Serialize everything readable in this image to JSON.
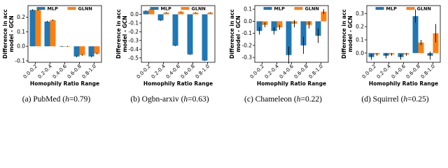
{
  "chart_data": [
    {
      "type": "bar",
      "caption": [
        "(a) PubMed (",
        "h",
        "=0.79)"
      ],
      "ylabel": [
        "Difference in acc",
        "model - GCN"
      ],
      "xlabel": "Homophily Ratio Range",
      "categories": [
        "0.0-0.2",
        "0.2-0.4",
        "0.4-0.6",
        "0.6-0.8",
        "0.8-1.0"
      ],
      "series": [
        {
          "name": "MLP",
          "color": "#1f77b4",
          "values": [
            0.25,
            0.17,
            0.0,
            -0.07,
            -0.07
          ],
          "errors": [
            0.005,
            0.005,
            0.003,
            0.005,
            0.005
          ]
        },
        {
          "name": "GLNN",
          "color": "#ff7f0e",
          "values": [
            0.25,
            0.18,
            0.0,
            -0.06,
            -0.05
          ],
          "errors": [
            0.005,
            0.005,
            0.003,
            0.005,
            0.005
          ]
        }
      ],
      "ylim": [
        -0.11,
        0.28
      ],
      "yticks": [
        -0.1,
        {
          "value": 0,
          "label": "0.0"
        },
        0.1,
        0.2
      ],
      "legend": "upper center"
    },
    {
      "type": "bar",
      "caption": [
        "(b) Ogbn-arxiv (",
        "h",
        "=0.63)"
      ],
      "ylabel": [
        "Difference in acc",
        "model - GCN"
      ],
      "xlabel": "Homophily Ratio Range",
      "categories": [
        "0.0-0.2",
        "0.2-0.4",
        "0.4-0.6",
        "0.6-0.8",
        "0.8-1.0"
      ],
      "series": [
        {
          "name": "MLP",
          "color": "#1f77b4",
          "values": [
            0.04,
            -0.07,
            -0.36,
            -0.46,
            -0.53
          ],
          "errors": [
            0.005,
            0.005,
            0.005,
            0.005,
            0.005
          ]
        },
        {
          "name": "GLNN",
          "color": "#ff7f0e",
          "values": [
            0.06,
            0.02,
            0.03,
            0.02,
            0.02
          ],
          "errors": [
            0.005,
            0.005,
            0.005,
            0.005,
            0.005
          ]
        }
      ],
      "ylim": [
        -0.55,
        0.1
      ],
      "yticks": [
        -0.5,
        -0.4,
        -0.3,
        -0.2,
        -0.1,
        {
          "value": 0,
          "label": "0.0"
        }
      ],
      "legend": "upper center"
    },
    {
      "type": "bar",
      "caption": [
        "(c) Chameleon (",
        "h",
        "=0.22)"
      ],
      "ylabel": [
        "Difference in acc",
        "model - GCN"
      ],
      "xlabel": "Homophily Ratio Range",
      "categories": [
        "0.0-0.2",
        "0.2-0.4",
        "0.4-0.6",
        "0.6-0.8",
        "0.8-1.0"
      ],
      "series": [
        {
          "name": "MLP",
          "color": "#1f77b4",
          "values": [
            -0.08,
            -0.08,
            -0.28,
            -0.2,
            -0.12
          ],
          "errors": [
            0.03,
            0.03,
            0.07,
            0.07,
            0.06
          ]
        },
        {
          "name": "GLNN",
          "color": "#ff7f0e",
          "values": [
            -0.03,
            -0.05,
            -0.02,
            -0.03,
            0.08
          ],
          "errors": [
            0.02,
            0.02,
            0.03,
            0.03,
            0.02
          ]
        }
      ],
      "ylim": [
        -0.34,
        0.13
      ],
      "yticks": [
        -0.3,
        -0.2,
        -0.1,
        {
          "value": 0,
          "label": "0.0"
        },
        0.1
      ],
      "legend": "upper center"
    },
    {
      "type": "bar",
      "caption": [
        "(d) Squirrel (",
        "h",
        "=0.25)"
      ],
      "ylabel": [
        "Difference in acc",
        "model - GCN"
      ],
      "xlabel": "Homophily Ratio Range",
      "categories": [
        "0.0-0.2",
        "0.2-0.4",
        "0.4-0.6",
        "0.6-0.8",
        "0.8-1.0"
      ],
      "series": [
        {
          "name": "MLP",
          "color": "#1f77b4",
          "values": [
            -0.03,
            -0.02,
            -0.03,
            0.28,
            -0.02
          ],
          "errors": [
            0.02,
            0.02,
            0.02,
            0.05,
            0.03
          ]
        },
        {
          "name": "GLNN",
          "color": "#ff7f0e",
          "values": [
            -0.01,
            -0.01,
            -0.01,
            0.08,
            0.15
          ],
          "errors": [
            0.01,
            0.01,
            0.01,
            0.02,
            0.07
          ]
        }
      ],
      "ylim": [
        -0.07,
        0.36
      ],
      "yticks": [
        {
          "value": 0,
          "label": "0.0"
        },
        0.1,
        0.2,
        0.3
      ],
      "legend": "upper center"
    }
  ]
}
